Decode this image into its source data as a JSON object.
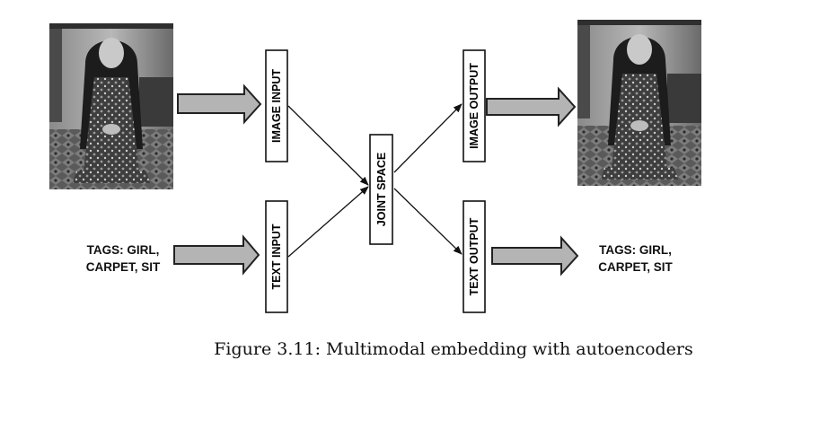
{
  "diagram": {
    "nodes": {
      "image_input": "IMAGE INPUT",
      "text_input": "TEXT INPUT",
      "joint_space": "JOINT SPACE",
      "image_output": "IMAGE OUTPUT",
      "text_output": "TEXT OUTPUT"
    },
    "tags_input": {
      "line1": "TAGS: GIRL,",
      "line2": "CARPET, SIT"
    },
    "tags_output": {
      "line1": "TAGS: GIRL,",
      "line2": "CARPET, SIT"
    },
    "edges": [
      [
        "image_input",
        "joint_space"
      ],
      [
        "text_input",
        "joint_space"
      ],
      [
        "joint_space",
        "image_output"
      ],
      [
        "joint_space",
        "text_output"
      ]
    ],
    "photo_description_icon": "photo-of-girl-kneeling-on-carpet"
  },
  "caption": "Figure 3.11: Multimodal embedding with autoencoders"
}
